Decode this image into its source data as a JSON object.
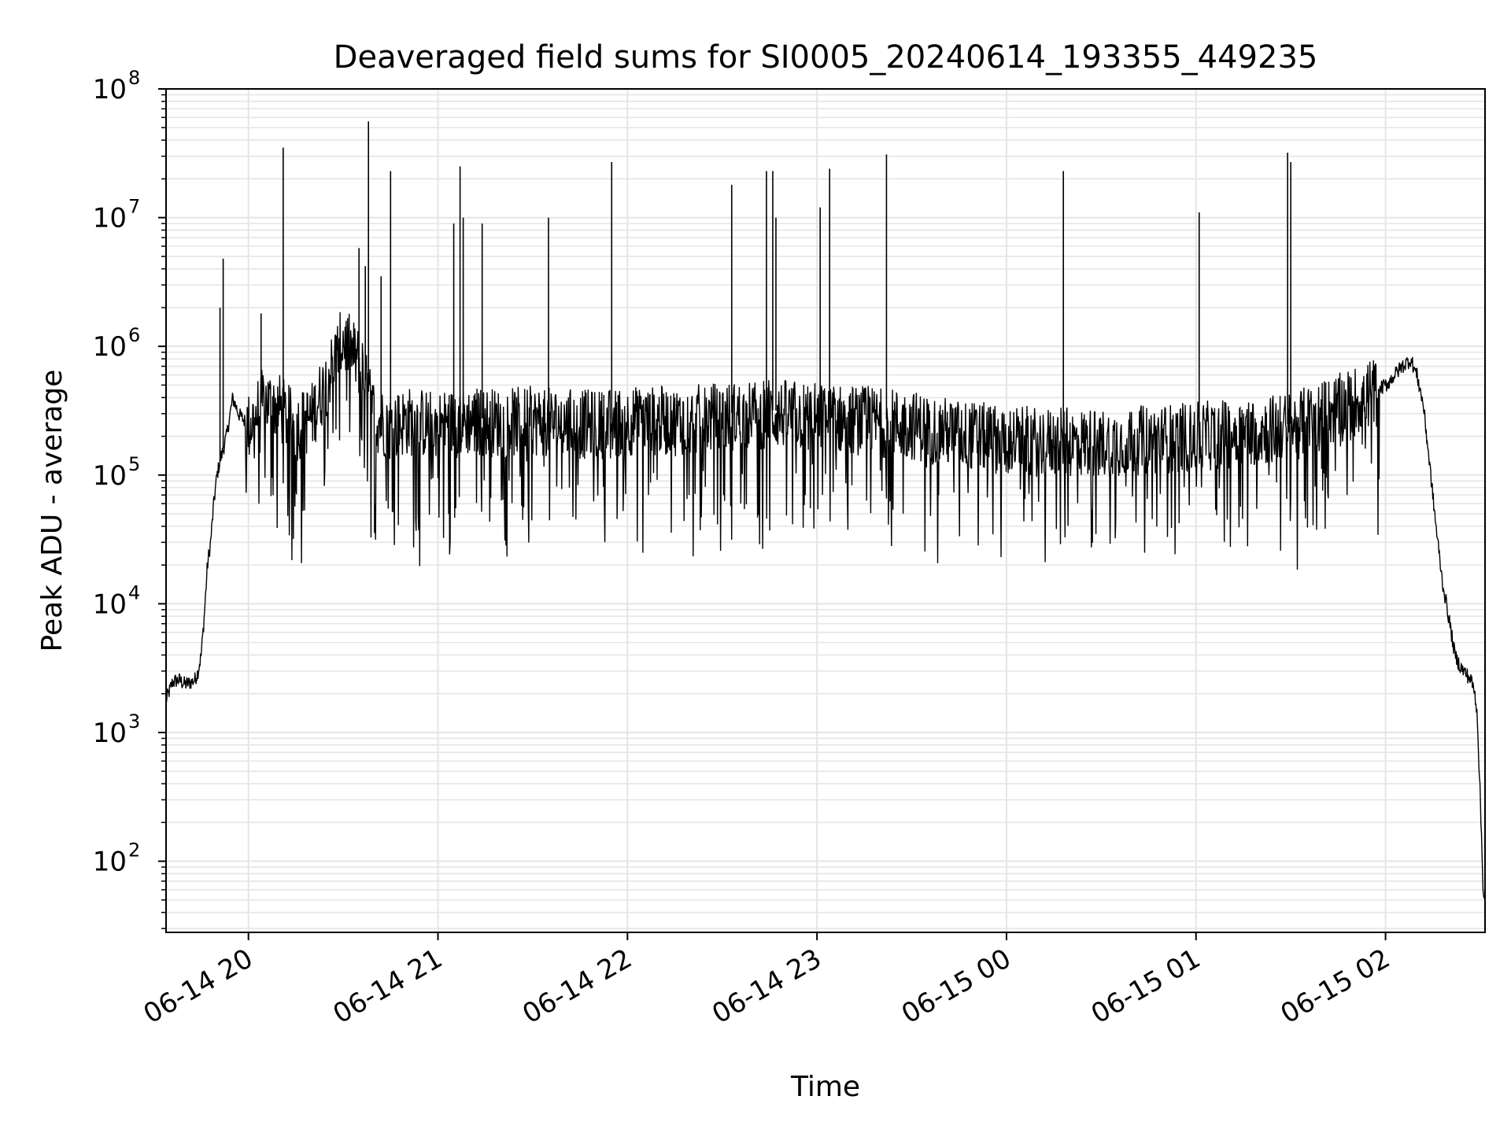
{
  "chart_data": {
    "type": "line",
    "title": "Deaveraged field sums for SI0005_20240614_193355_449235",
    "xlabel": "Time",
    "ylabel": "Peak ADU - average",
    "yscale": "log",
    "ylim": [
      28,
      100000000
    ],
    "xlim": [
      "2024-06-14 19:33:55",
      "2024-06-15 02:31:30"
    ],
    "grid": true,
    "line_color": "#000000",
    "grid_color": "#e5e5e5",
    "x_ticks": [
      {
        "value": "2024-06-14 20:00",
        "label": "06-14 20"
      },
      {
        "value": "2024-06-14 21:00",
        "label": "06-14 21"
      },
      {
        "value": "2024-06-14 22:00",
        "label": "06-14 22"
      },
      {
        "value": "2024-06-14 23:00",
        "label": "06-14 23"
      },
      {
        "value": "2024-06-15 00:00",
        "label": "06-15 00"
      },
      {
        "value": "2024-06-15 01:00",
        "label": "06-15 01"
      },
      {
        "value": "2024-06-15 02:00",
        "label": "06-15 02"
      }
    ],
    "y_ticks": [
      {
        "value": 100,
        "base": "10",
        "exp": "2"
      },
      {
        "value": 1000,
        "base": "10",
        "exp": "3"
      },
      {
        "value": 10000,
        "base": "10",
        "exp": "4"
      },
      {
        "value": 100000,
        "base": "10",
        "exp": "5"
      },
      {
        "value": 1000000,
        "base": "10",
        "exp": "6"
      },
      {
        "value": 10000000,
        "base": "10",
        "exp": "7"
      },
      {
        "value": 100000000,
        "base": "10",
        "exp": "8"
      }
    ],
    "series": [
      {
        "x": [
          "2024-06-14 19:33:55",
          "2024-06-14 19:36",
          "2024-06-14 19:38",
          "2024-06-14 19:40",
          "2024-06-14 19:42",
          "2024-06-14 19:43",
          "2024-06-14 19:44",
          "2024-06-14 19:45",
          "2024-06-14 19:46",
          "2024-06-14 19:47",
          "2024-06-14 19:48",
          "2024-06-14 19:49",
          "2024-06-14 19:50",
          "2024-06-14 19:51",
          "2024-06-14 19:52",
          "2024-06-14 19:53",
          "2024-06-14 19:54",
          "2024-06-14 19:55",
          "2024-06-14 19:56",
          "2024-06-14 19:57",
          "2024-06-14 19:58",
          "2024-06-14 20:00",
          "2024-06-14 20:05",
          "2024-06-14 20:10",
          "2024-06-14 20:12",
          "2024-06-14 20:15",
          "2024-06-14 20:20",
          "2024-06-14 20:25",
          "2024-06-14 20:30",
          "2024-06-14 20:35",
          "2024-06-14 20:40",
          "2024-06-14 20:45",
          "2024-06-14 20:50",
          "2024-06-14 21:00",
          "2024-06-14 21:10",
          "2024-06-14 21:20",
          "2024-06-14 21:30",
          "2024-06-14 21:40",
          "2024-06-14 21:50",
          "2024-06-14 22:00",
          "2024-06-14 22:15",
          "2024-06-14 22:30",
          "2024-06-14 22:45",
          "2024-06-14 23:00",
          "2024-06-14 23:15",
          "2024-06-14 23:30",
          "2024-06-14 23:45",
          "2024-06-15 00:00",
          "2024-06-15 00:15",
          "2024-06-15 00:30",
          "2024-06-15 00:45",
          "2024-06-15 01:00",
          "2024-06-15 01:15",
          "2024-06-15 01:30",
          "2024-06-15 01:45",
          "2024-06-15 01:55",
          "2024-06-15 02:00",
          "2024-06-15 02:05",
          "2024-06-15 02:08",
          "2024-06-15 02:10",
          "2024-06-15 02:12",
          "2024-06-15 02:14",
          "2024-06-15 02:16",
          "2024-06-15 02:18",
          "2024-06-15 02:20",
          "2024-06-15 02:22",
          "2024-06-15 02:24",
          "2024-06-15 02:26",
          "2024-06-15 02:27",
          "2024-06-15 02:28",
          "2024-06-15 02:29",
          "2024-06-15 02:30",
          "2024-06-15 02:31"
        ],
        "y": [
          1800,
          2500,
          2600,
          2400,
          2500,
          2600,
          3000,
          4000,
          8000,
          20000,
          30000,
          60000,
          100000,
          130000,
          160000,
          200000,
          280000,
          400000,
          350000,
          300000,
          280000,
          250000,
          400000,
          350000,
          300000,
          250000,
          300000,
          600000,
          1200000,
          800000,
          300000,
          250000,
          280000,
          260000,
          280000,
          270000,
          280000,
          270000,
          260000,
          280000,
          280000,
          300000,
          320000,
          300000,
          280000,
          260000,
          220000,
          200000,
          190000,
          190000,
          200000,
          210000,
          230000,
          250000,
          350000,
          450000,
          500000,
          700000,
          800000,
          600000,
          350000,
          120000,
          40000,
          15000,
          8000,
          4000,
          3200,
          2800,
          2600,
          2200,
          1500,
          300,
          55
        ]
      }
    ],
    "spikes": [
      {
        "x": "2024-06-14 19:52",
        "y": 4800000
      },
      {
        "x": "2024-06-14 19:51",
        "y": 2000000
      },
      {
        "x": "2024-06-14 20:04",
        "y": 1800000
      },
      {
        "x": "2024-06-14 20:11",
        "y": 35000000
      },
      {
        "x": "2024-06-14 20:35",
        "y": 5800000
      },
      {
        "x": "2024-06-14 20:37",
        "y": 4200000
      },
      {
        "x": "2024-06-14 20:38",
        "y": 56000000
      },
      {
        "x": "2024-06-14 20:42",
        "y": 3500000
      },
      {
        "x": "2024-06-14 20:45",
        "y": 23000000
      },
      {
        "x": "2024-06-14 21:05",
        "y": 9000000
      },
      {
        "x": "2024-06-14 21:07",
        "y": 25000000
      },
      {
        "x": "2024-06-14 21:08",
        "y": 10000000
      },
      {
        "x": "2024-06-14 21:14",
        "y": 9000000
      },
      {
        "x": "2024-06-14 21:35",
        "y": 10000000
      },
      {
        "x": "2024-06-14 21:55",
        "y": 27000000
      },
      {
        "x": "2024-06-14 22:33",
        "y": 18000000
      },
      {
        "x": "2024-06-14 22:44",
        "y": 23000000
      },
      {
        "x": "2024-06-14 22:46",
        "y": 23000000
      },
      {
        "x": "2024-06-14 22:47",
        "y": 10000000
      },
      {
        "x": "2024-06-14 23:01",
        "y": 12000000
      },
      {
        "x": "2024-06-14 23:04",
        "y": 24000000
      },
      {
        "x": "2024-06-14 23:22",
        "y": 31000000
      },
      {
        "x": "2024-06-15 00:18",
        "y": 23000000
      },
      {
        "x": "2024-06-15 01:01",
        "y": 11000000
      },
      {
        "x": "2024-06-15 01:29",
        "y": 32000000
      },
      {
        "x": "2024-06-15 01:30",
        "y": 27000000
      }
    ]
  }
}
